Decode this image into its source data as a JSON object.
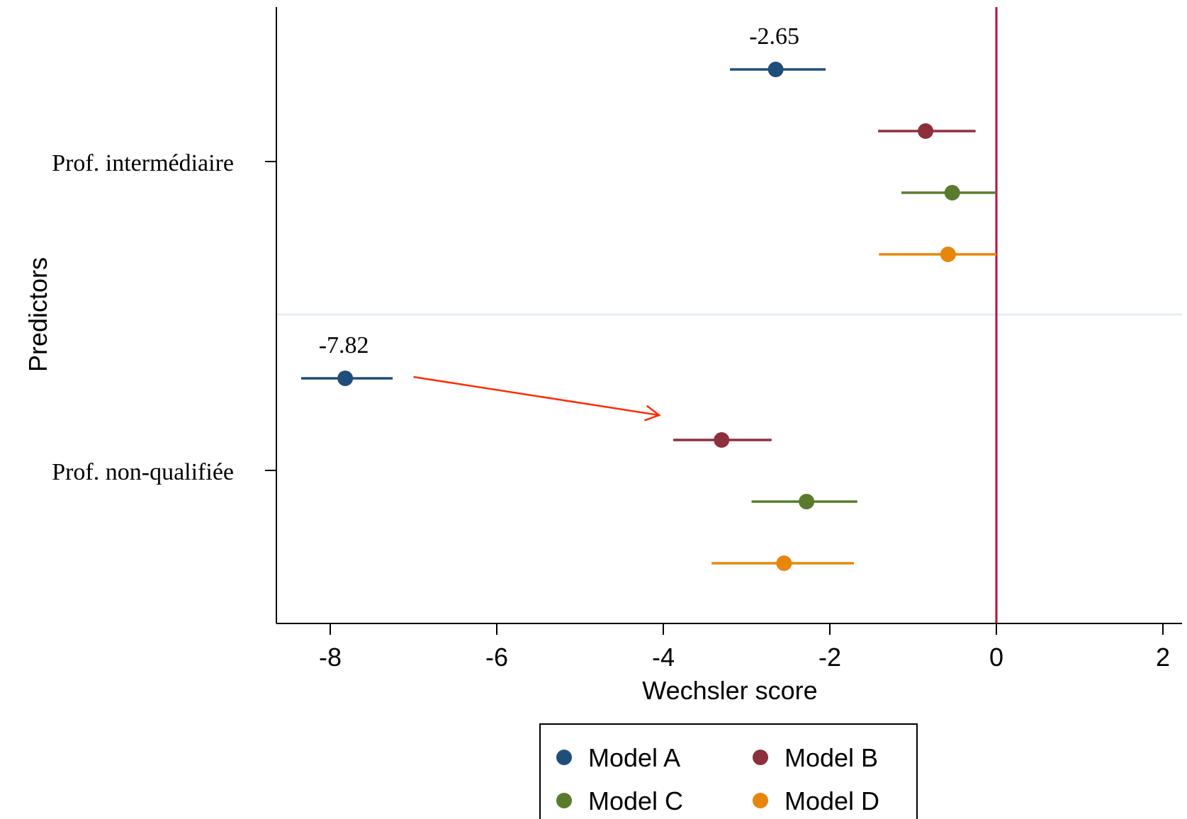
{
  "chart_data": {
    "type": "scatter",
    "subtype": "coefficient-plot",
    "xlabel": "Wechsler score",
    "ylabel": "Predictors",
    "xlim": [
      -8.6,
      2.25
    ],
    "xticks": [
      "-8",
      "-6",
      "-4",
      "-2",
      "0",
      "2"
    ],
    "reference_line_x": 0,
    "categories": [
      "Prof. intermédiaire",
      "Prof. non-qualifiée"
    ],
    "legend_position": "bottom",
    "series": [
      {
        "name": "Model A",
        "color": "#1f4e79",
        "points": [
          {
            "category": "Prof. intermédiaire",
            "estimate": -2.65,
            "ci": [
              -3.2,
              -2.05
            ]
          },
          {
            "category": "Prof. non-qualifiée",
            "estimate": -7.82,
            "ci": [
              -8.35,
              -7.25
            ]
          }
        ]
      },
      {
        "name": "Model B",
        "color": "#8e2f3c",
        "points": [
          {
            "category": "Prof. intermédiaire",
            "estimate": -0.85,
            "ci": [
              -1.42,
              -0.25
            ]
          },
          {
            "category": "Prof. non-qualifiée",
            "estimate": -3.3,
            "ci": [
              -3.88,
              -2.7
            ]
          }
        ]
      },
      {
        "name": "Model C",
        "color": "#5a7b2e",
        "points": [
          {
            "category": "Prof. intermédiaire",
            "estimate": -0.53,
            "ci": [
              -1.14,
              0.0
            ]
          },
          {
            "category": "Prof. non-qualifiée",
            "estimate": -2.28,
            "ci": [
              -2.94,
              -1.67
            ]
          }
        ]
      },
      {
        "name": "Model D",
        "color": "#e8860c",
        "points": [
          {
            "category": "Prof. intermédiaire",
            "estimate": -0.58,
            "ci": [
              -1.41,
              0.0
            ]
          },
          {
            "category": "Prof. non-qualifiée",
            "estimate": -2.55,
            "ci": [
              -3.42,
              -1.71
            ]
          }
        ]
      }
    ],
    "annotations": [
      {
        "text": "-2.65",
        "series": "Model A",
        "category": "Prof. intermédiaire"
      },
      {
        "text": "-7.82",
        "series": "Model A",
        "category": "Prof. non-qualifiée"
      }
    ],
    "arrow": {
      "color": "#ff2a00",
      "from_x": -7.0,
      "to_x": -4.05
    }
  }
}
